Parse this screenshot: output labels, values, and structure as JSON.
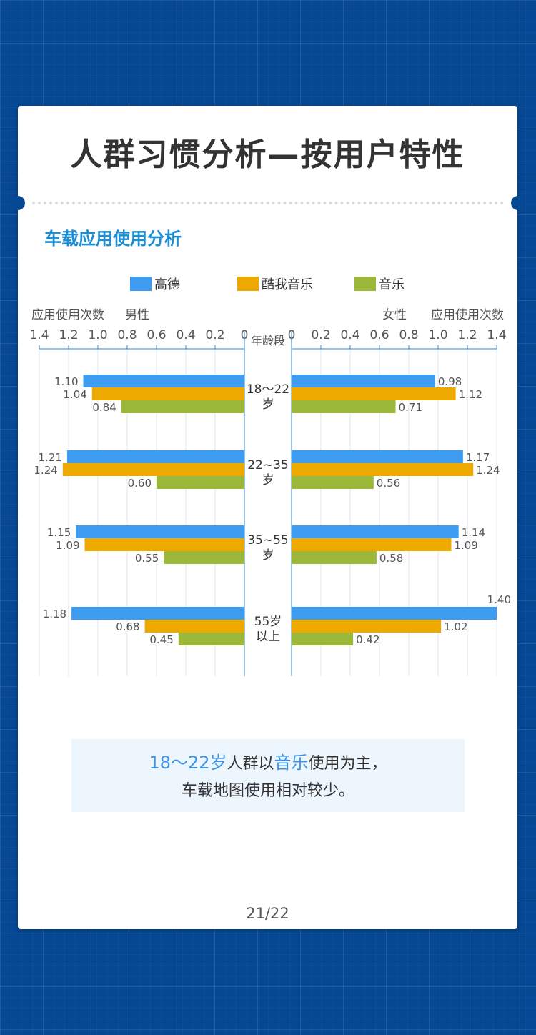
{
  "page_title": "人群习惯分析—按用户特性",
  "section_title": "车载应用使用分析",
  "summary": {
    "line1_hl1": "18～22岁",
    "line1_mid": "人群以",
    "line1_hl2": "音乐",
    "line1_end": "使用为主，",
    "line2": "车载地图使用相对较少。"
  },
  "page_number": "21/22",
  "colors": {
    "gaode": "#3d9cf0",
    "kuwo": "#eda900",
    "music": "#9bb83a",
    "accent": "#1a8fd8"
  },
  "chart_data": {
    "type": "bar",
    "orientation": "horizontal-butterfly",
    "categories": [
      "18～22岁",
      "22~35岁",
      "35~55岁",
      "55岁以上"
    ],
    "category_lines": [
      [
        "18～22",
        "岁"
      ],
      [
        "22~35",
        "岁"
      ],
      [
        "35~55",
        "岁"
      ],
      [
        "55岁",
        "以上"
      ]
    ],
    "center_label": "年龄段",
    "left_panel": {
      "group": "男性",
      "axis_label": "应用使用次数"
    },
    "right_panel": {
      "group": "女性",
      "axis_label": "应用使用次数"
    },
    "ticks": [
      "0",
      "0.2",
      "0.4",
      "0.6",
      "0.8",
      "1.0",
      "1.2",
      "1.4"
    ],
    "xlim": [
      0,
      1.4
    ],
    "legend_position": "top-center",
    "series": [
      {
        "name": "高德",
        "color": "#3d9cf0",
        "male": [
          1.1,
          1.21,
          1.15,
          1.18
        ],
        "female": [
          0.98,
          1.17,
          1.14,
          1.4
        ]
      },
      {
        "name": "酷我音乐",
        "color": "#eda900",
        "male": [
          1.04,
          1.24,
          1.09,
          0.68
        ],
        "female": [
          1.12,
          1.24,
          1.09,
          1.02
        ]
      },
      {
        "name": "音乐",
        "color": "#9bb83a",
        "male": [
          0.84,
          0.6,
          0.55,
          0.45
        ],
        "female": [
          0.71,
          0.56,
          0.58,
          0.42
        ]
      }
    ]
  }
}
